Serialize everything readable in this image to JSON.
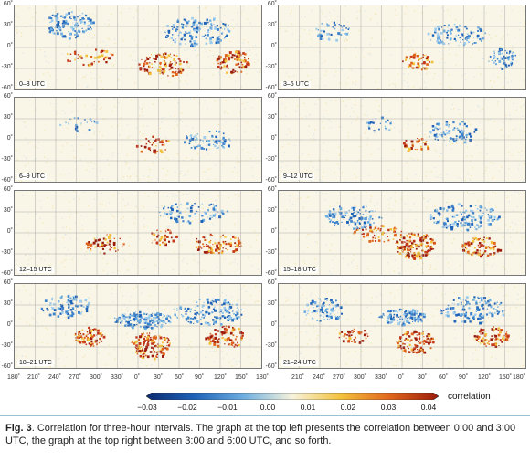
{
  "figure": {
    "panels": [
      {
        "label": "0–3 UTC"
      },
      {
        "label": "3–6 UTC"
      },
      {
        "label": "6–9 UTC"
      },
      {
        "label": "9–12 UTC"
      },
      {
        "label": "12–15 UTC"
      },
      {
        "label": "15–18 UTC"
      },
      {
        "label": "18–21 UTC"
      },
      {
        "label": "21–24 UTC"
      }
    ],
    "lat_ticks": [
      "60˚",
      "30˚",
      "0˚",
      "-30˚",
      "-60˚"
    ],
    "lon_ticks": [
      "180˚",
      "210˚",
      "240˚",
      "270˚",
      "300˚",
      "330˚",
      "0˚",
      "30˚",
      "60˚",
      "90˚",
      "120˚",
      "150˚",
      "180˚"
    ],
    "colorbar": {
      "ticks": [
        "−0.03",
        "−0.02",
        "−0.01",
        "0.00",
        "0.01",
        "0.02",
        "0.03",
        "0.04"
      ],
      "label": "correlation",
      "colors": [
        "#0b2a6f",
        "#1f63b8",
        "#6eaee0",
        "#f7f3dc",
        "#f3c13b",
        "#e0651c",
        "#9b1b0c"
      ]
    }
  },
  "caption": {
    "fig_label": "Fig. 3",
    "text": ". Correlation for three-hour intervals. The graph at the top left presents the correlation between 0:00 and 3:00 UTC, the graph at the top right between 3:00 and  6:00 UTC, and so forth."
  }
}
